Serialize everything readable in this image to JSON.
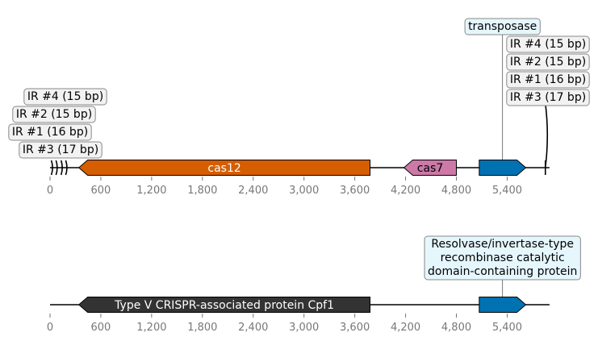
{
  "chart_data": {
    "type": "gene-map",
    "tracks": [
      {
        "name": "",
        "range": [
          0,
          5900
        ],
        "ticks": [
          0,
          600,
          1200,
          1800,
          2400,
          3000,
          3600,
          4200,
          4800,
          5400
        ],
        "tick_labels": [
          "0",
          "600",
          "1,200",
          "1,800",
          "2,400",
          "3,000",
          "3,600",
          "4,200",
          "4,800",
          "5,400"
        ],
        "features": [
          {
            "label": "cas12",
            "start": 340,
            "end": 3780,
            "strand": -1,
            "color": "#d55e00",
            "label_color": "#ffffff",
            "label_mode": "inside"
          },
          {
            "label": "cas7",
            "start": 4180,
            "end": 4800,
            "strand": -1,
            "color": "#cc79a7",
            "label_color": "#000000",
            "label_mode": "inside"
          },
          {
            "label": "transposase",
            "start": 5070,
            "end": 5620,
            "strand": 1,
            "color": "#0072b2",
            "label_color": "#000000",
            "label_mode": "box",
            "box_bg": "#e5f6fd"
          }
        ],
        "repeats": [
          {
            "label": "IR #3 (17 bp)",
            "position": 25,
            "group": "left"
          },
          {
            "label": "IR #1 (16 bp)",
            "position": 80,
            "group": "left"
          },
          {
            "label": "IR #2 (15 bp)",
            "position": 140,
            "group": "left"
          },
          {
            "label": "IR #4 (15 bp)",
            "position": 195,
            "group": "left"
          },
          {
            "label": "IR #3 (17 bp)",
            "position": 5870,
            "group": "right"
          },
          {
            "label": "IR #1 (16 bp)",
            "position": 5875,
            "group": "right"
          },
          {
            "label": "IR #2 (15 bp)",
            "position": 5880,
            "group": "right"
          },
          {
            "label": "IR #4 (15 bp)",
            "position": 5885,
            "group": "right"
          }
        ]
      },
      {
        "name": "",
        "range": [
          0,
          5900
        ],
        "ticks": [
          0,
          600,
          1200,
          1800,
          2400,
          3000,
          3600,
          4200,
          4800,
          5400
        ],
        "tick_labels": [
          "0",
          "600",
          "1,200",
          "1,800",
          "2,400",
          "3,000",
          "3,600",
          "4,200",
          "4,800",
          "5,400"
        ],
        "features": [
          {
            "label": "Type V CRISPR-associated protein Cpf1",
            "start": 340,
            "end": 3780,
            "strand": -1,
            "color": "#333333",
            "label_color": "#ffffff",
            "label_mode": "inside"
          },
          {
            "label": "Resolvase/invertase-type recombinase catalytic domain-containing protein",
            "label_lines": [
              "Resolvase/invertase-type",
              "recombinase catalytic",
              "domain-containing protein"
            ],
            "start": 5070,
            "end": 5620,
            "strand": 1,
            "color": "#0072b2",
            "label_color": "#000000",
            "label_mode": "box",
            "box_bg": "#e5f6fd"
          }
        ],
        "repeats": []
      }
    ]
  }
}
